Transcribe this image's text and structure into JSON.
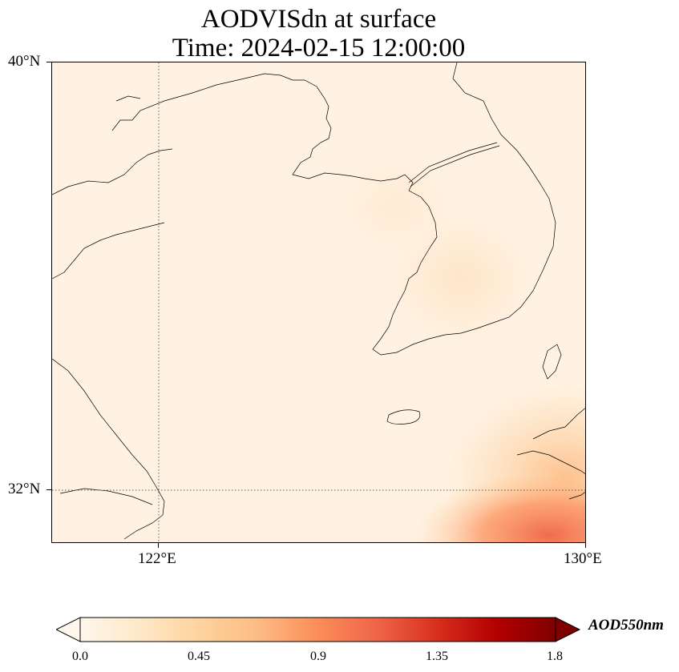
{
  "title": {
    "line1": "AODVISdn at surface",
    "line2": "Time: 2024-02-15 12:00:00"
  },
  "map": {
    "lat_labels": [
      "40°N",
      "32°N"
    ],
    "lon_labels": [
      "122°E",
      "130°E"
    ],
    "extent": {
      "lon_min": 120.0,
      "lon_max": 130.0,
      "lat_min": 31.0,
      "lat_max": 40.0
    },
    "gridlines": {
      "lon": [
        122
      ],
      "lat": [
        32
      ],
      "style": "dotted"
    },
    "colormap": "OrRd",
    "field_note": "AOD mostly 0.0-0.15 over domain, higher (up to ~1.0) in southeast corner"
  },
  "colorbar": {
    "label": "AOD550nm",
    "ticks": [
      "0.0",
      "0.45",
      "0.9",
      "1.35",
      "1.8"
    ],
    "range": [
      0.0,
      1.8
    ],
    "extend": "both",
    "colors": [
      "#fff7ec",
      "#fee8c8",
      "#fdd49e",
      "#fdbb84",
      "#fc8d59",
      "#ef6548",
      "#d7301f",
      "#b30000",
      "#7f0000"
    ]
  }
}
